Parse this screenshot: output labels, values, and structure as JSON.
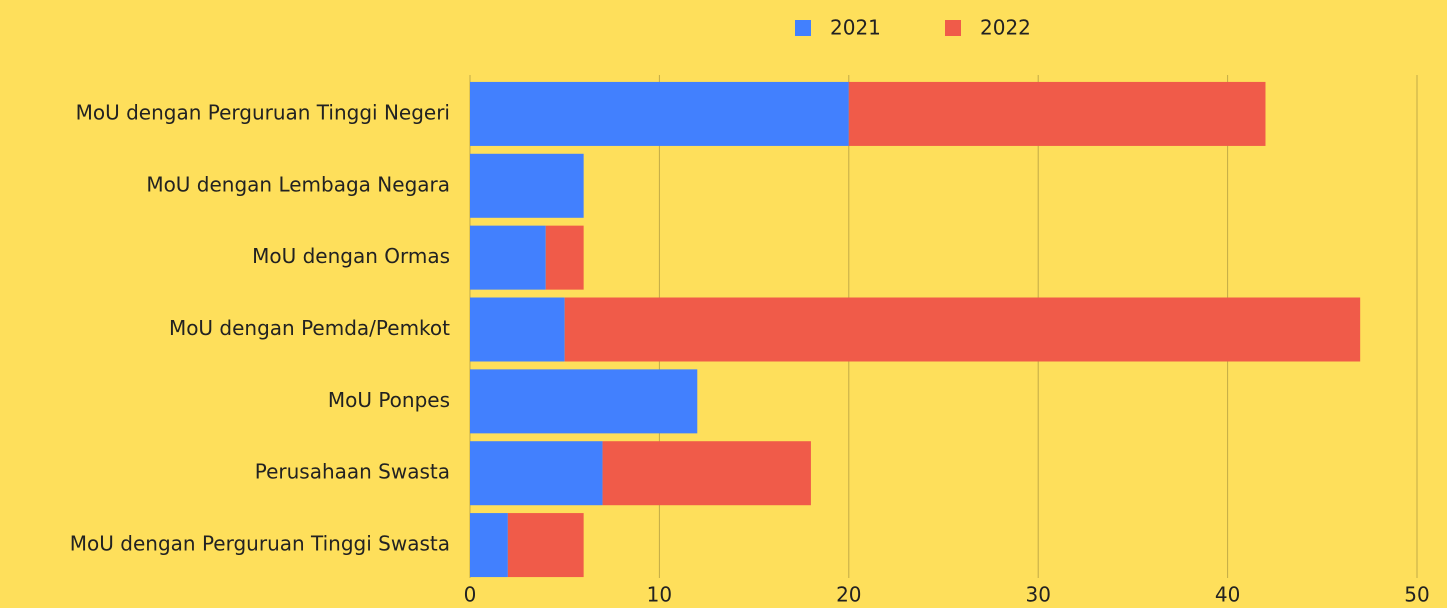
{
  "chart_data": {
    "type": "stacked_barh",
    "categories": [
      "MoU dengan Perguruan Tinggi Negeri",
      "MoU dengan Lembaga Negara",
      "MoU dengan Ormas",
      "MoU dengan Pemda/Pemkot",
      "MoU Ponpes ",
      "Perusahaan Swasta",
      "MoU dengan Perguruan Tinggi Swasta"
    ],
    "series": [
      {
        "name": "2021",
        "color": "#4280fe",
        "values": [
          20,
          6,
          4,
          5,
          12,
          7,
          2
        ]
      },
      {
        "name": "2022",
        "color": "#f05b49",
        "values": [
          22,
          0,
          2,
          42,
          0,
          11,
          4
        ]
      }
    ],
    "xlim": [
      0,
      50
    ],
    "xticks": [
      0,
      10,
      20,
      30,
      40,
      50
    ],
    "grid": true,
    "legend": "top"
  }
}
